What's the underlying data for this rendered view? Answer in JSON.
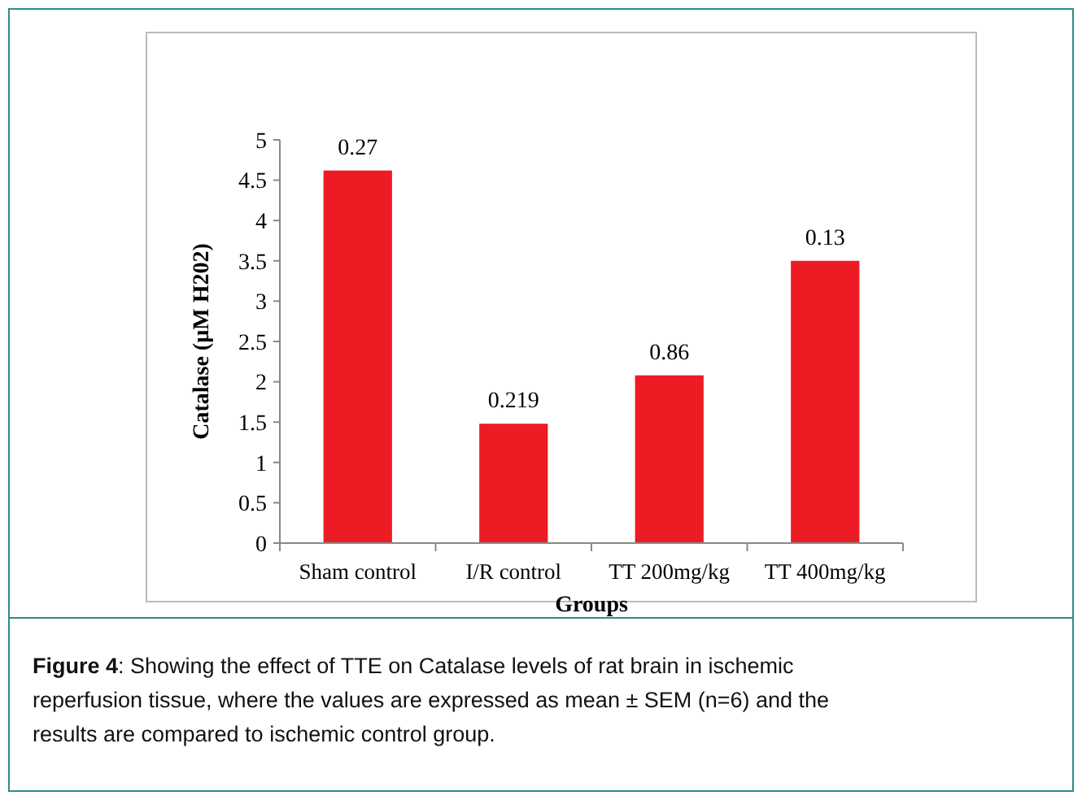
{
  "chart_data": {
    "type": "bar",
    "xlabel": "Groups",
    "ylabel": "Catalase (µM H202)",
    "categories": [
      "Sham control",
      "I/R control",
      "TT 200mg/kg",
      "TT 400mg/kg"
    ],
    "values": [
      4.62,
      1.48,
      2.08,
      3.5
    ],
    "color": "#ed1c24",
    "ylim": [
      0,
      5
    ],
    "yticks": [
      0,
      0.5,
      1,
      1.5,
      2,
      2.5,
      3,
      3.5,
      4,
      4.5,
      5
    ],
    "grid": false,
    "annotations": [
      {
        "text": "0.27",
        "x": "Sham control",
        "y": 4.62
      },
      {
        "text": "0.219",
        "x": "I/R control",
        "y": 1.48
      },
      {
        "text": "0.86",
        "x": "TT 200mg/kg",
        "y": 2.08
      },
      {
        "text": "0.13",
        "x": "TT 400mg/kg",
        "y": 3.5
      },
      "Figure 4: Showing the effect of TTE on Catalase levels of rat brain in ischemic reperfusion tissue, where the values are expressed as mean ± SEM (n=6) and the results are compared to ischemic control group."
    ]
  }
}
